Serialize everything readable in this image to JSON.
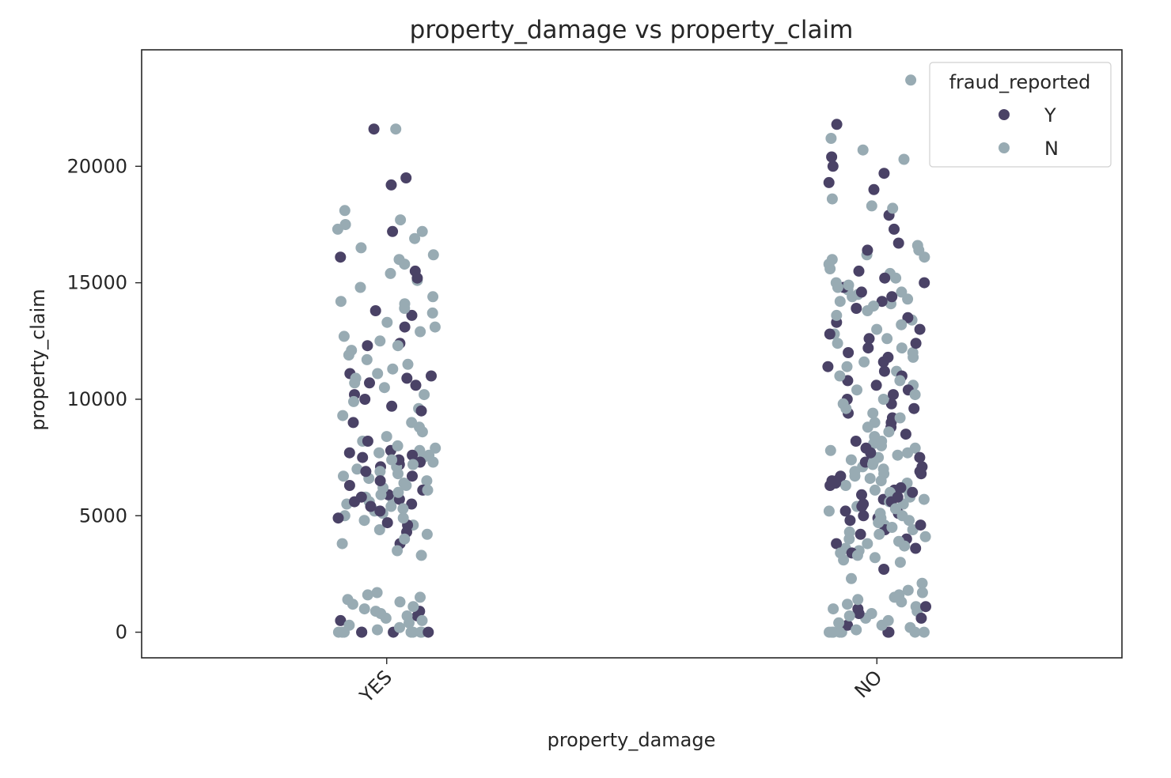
{
  "chart_data": {
    "type": "scatter",
    "subtype": "strip",
    "title": "property_damage vs property_claim",
    "xlabel": "property_damage",
    "ylabel": "property_claim",
    "categories": [
      "YES",
      "NO"
    ],
    "ylim": [
      -1100,
      25000
    ],
    "yticks": [
      0,
      5000,
      10000,
      15000,
      20000
    ],
    "grid": false,
    "legend": {
      "title": "fraud_reported",
      "placement": "top-right"
    },
    "colors": {
      "Y": "#4a4266",
      "N": "#98abb3"
    },
    "series": [
      {
        "name": "Y",
        "color": "#4a4266",
        "points": [
          {
            "category": "YES",
            "values": [
              21600,
              19200,
              19500,
              17200,
              16100,
              15500,
              15200,
              13800,
              13600,
              13100,
              12400,
              12300,
              11100,
              11000,
              10900,
              10700,
              10600,
              10200,
              10000,
              9700,
              9500,
              9000,
              8200,
              7800,
              7700,
              7600,
              7500,
              7400,
              7300,
              7200,
              7100,
              6900,
              6700,
              6500,
              6300,
              6100,
              6000,
              5900,
              5800,
              5700,
              5600,
              5500,
              5400,
              5200,
              4900,
              4700,
              4600,
              4300,
              3800,
              900,
              700,
              500,
              0,
              0,
              0,
              0
            ]
          },
          {
            "category": "NO",
            "values": [
              21800,
              20400,
              20000,
              19700,
              19300,
              19000,
              17900,
              17300,
              16700,
              16400,
              15500,
              15200,
              15000,
              14800,
              14600,
              14400,
              14200,
              13900,
              13500,
              13300,
              13000,
              12800,
              12600,
              12400,
              12200,
              12000,
              11800,
              11600,
              11400,
              11200,
              11000,
              10800,
              10600,
              10400,
              10200,
              10000,
              9800,
              9600,
              9400,
              9200,
              9000,
              8800,
              8500,
              8200,
              7900,
              7700,
              7500,
              7300,
              7100,
              6900,
              6800,
              6700,
              6600,
              6500,
              6400,
              6300,
              6200,
              6100,
              6000,
              5900,
              5800,
              5700,
              5600,
              5500,
              5400,
              5300,
              5200,
              5100,
              5000,
              4900,
              4800,
              4600,
              4400,
              4200,
              4000,
              3800,
              3600,
              3400,
              2700,
              1100,
              1000,
              800,
              600,
              300,
              0,
              0
            ]
          }
        ]
      },
      {
        "name": "N",
        "color": "#98abb3",
        "points": [
          {
            "category": "YES",
            "values": [
              21600,
              18100,
              17700,
              17500,
              17300,
              17200,
              16900,
              16500,
              16200,
              16000,
              15800,
              15400,
              15100,
              14800,
              14400,
              14200,
              14100,
              13900,
              13700,
              13300,
              13100,
              12900,
              12700,
              12500,
              12300,
              12100,
              11900,
              11700,
              11500,
              11300,
              11100,
              10900,
              10700,
              10500,
              10200,
              9900,
              9600,
              9300,
              9000,
              8800,
              8600,
              8400,
              8200,
              8000,
              7900,
              7800,
              7700,
              7600,
              7500,
              7400,
              7300,
              7200,
              7100,
              7000,
              6900,
              6800,
              6700,
              6600,
              6500,
              6400,
              6300,
              6200,
              6100,
              6000,
              5900,
              5800,
              5700,
              5600,
              5500,
              5400,
              5300,
              5200,
              5100,
              5000,
              4900,
              4800,
              4600,
              4400,
              4200,
              4000,
              3800,
              3500,
              3300,
              1700,
              1600,
              1500,
              1400,
              1300,
              1200,
              1100,
              1000,
              900,
              800,
              700,
              600,
              500,
              400,
              300,
              200,
              100,
              0,
              0,
              0,
              0,
              0,
              0,
              0
            ]
          },
          {
            "category": "NO",
            "values": [
              23700,
              21200,
              20700,
              20300,
              18600,
              18300,
              18200,
              16600,
              16400,
              16200,
              16100,
              16000,
              15800,
              15600,
              15400,
              15200,
              15000,
              14900,
              14800,
              14700,
              14600,
              14500,
              14400,
              14300,
              14200,
              14100,
              14000,
              13800,
              13600,
              13400,
              13200,
              13000,
              12800,
              12600,
              12400,
              12200,
              12000,
              11800,
              11600,
              11400,
              11200,
              11000,
              10800,
              10600,
              10400,
              10200,
              10000,
              9800,
              9600,
              9400,
              9200,
              9000,
              8800,
              8600,
              8400,
              8200,
              8100,
              8000,
              7900,
              7800,
              7700,
              7600,
              7500,
              7400,
              7300,
              7200,
              7100,
              7000,
              6900,
              6800,
              6700,
              6600,
              6500,
              6400,
              6300,
              6200,
              6100,
              6000,
              5900,
              5800,
              5700,
              5600,
              5500,
              5400,
              5300,
              5200,
              5100,
              5000,
              4900,
              4800,
              4700,
              4600,
              4500,
              4400,
              4300,
              4200,
              4100,
              4000,
              3900,
              3800,
              3700,
              3600,
              3500,
              3400,
              3300,
              3200,
              3100,
              3000,
              2300,
              2100,
              1800,
              1700,
              1600,
              1500,
              1400,
              1300,
              1200,
              1100,
              1000,
              900,
              800,
              700,
              600,
              500,
              400,
              300,
              200,
              100,
              0,
              0,
              0,
              0,
              0,
              0,
              0,
              0
            ]
          }
        ]
      }
    ]
  }
}
